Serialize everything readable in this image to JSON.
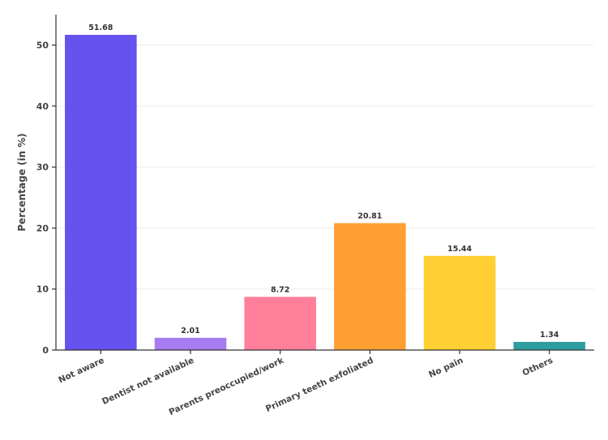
{
  "chart_data": {
    "type": "bar",
    "categories": [
      "Not aware",
      "Dentist not available",
      "Parents preoccupied/work",
      "Primary teeth exfoliated",
      "No pain",
      "Others"
    ],
    "values": [
      51.68,
      2.01,
      8.72,
      20.81,
      15.44,
      1.34
    ],
    "data_labels": [
      "51.68",
      "2.01",
      "8.72",
      "20.81",
      "15.44",
      "1.34"
    ],
    "colors": [
      "#6652ee",
      "#a77cf0",
      "#ff7f9a",
      "#ff9f33",
      "#ffcf33",
      "#2e9c9e"
    ],
    "xlabel": "",
    "ylabel": "Percentage (in %)",
    "ylim": [
      0,
      55
    ],
    "yticks": [
      0,
      10,
      20,
      30,
      40,
      50
    ],
    "ytick_labels": [
      "0",
      "10",
      "20",
      "30",
      "40",
      "50"
    ],
    "grid": "horizontal",
    "legend": "none"
  }
}
